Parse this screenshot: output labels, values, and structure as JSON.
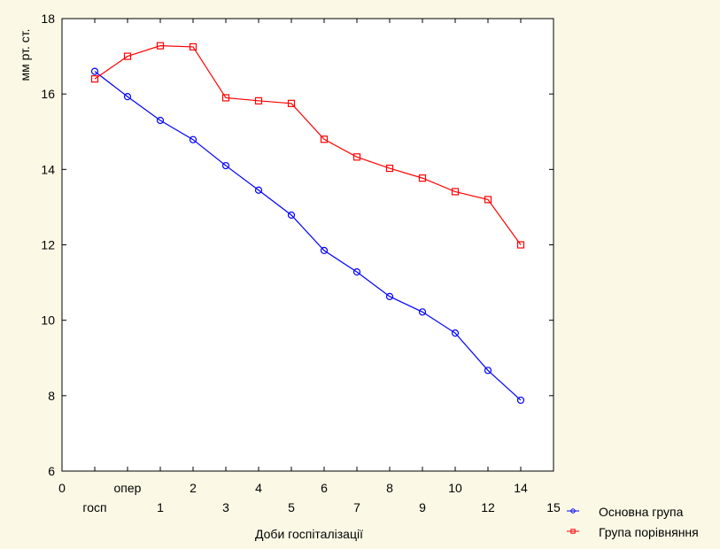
{
  "chart_data": {
    "type": "line",
    "xlabel": "Доби госпіталізації",
    "ylabel": "мм рт. ст.",
    "xlim": [
      0,
      15
    ],
    "ylim": [
      6,
      18
    ],
    "grid": false,
    "legend": "bottom-right",
    "x_ticks_top": [
      {
        "x": 0,
        "label": "0"
      },
      {
        "x": 2,
        "label": "опер"
      },
      {
        "x": 4,
        "label": "2"
      },
      {
        "x": 6,
        "label": "4"
      },
      {
        "x": 8,
        "label": "6"
      },
      {
        "x": 10,
        "label": "8"
      },
      {
        "x": 12,
        "label": "10"
      },
      {
        "x": 14,
        "label": "14"
      }
    ],
    "x_ticks_bottom": [
      {
        "x": 1,
        "label": "госп"
      },
      {
        "x": 3,
        "label": "1"
      },
      {
        "x": 5,
        "label": "3"
      },
      {
        "x": 7,
        "label": "5"
      },
      {
        "x": 9,
        "label": "7"
      },
      {
        "x": 11,
        "label": "9"
      },
      {
        "x": 13,
        "label": "12"
      },
      {
        "x": 15,
        "label": "15"
      }
    ],
    "y_ticks": [
      6,
      8,
      10,
      12,
      14,
      16,
      18
    ],
    "x": [
      1,
      2,
      3,
      4,
      5,
      6,
      7,
      8,
      9,
      10,
      11,
      12,
      13,
      14
    ],
    "series": [
      {
        "name": "Основна група",
        "color": "#0000ff",
        "marker": "circle",
        "values": [
          16.6,
          15.93,
          15.3,
          14.79,
          14.1,
          13.45,
          12.79,
          11.85,
          11.28,
          10.63,
          10.22,
          9.66,
          8.67,
          7.88
        ]
      },
      {
        "name": "Група порівняння",
        "color": "#ff0000",
        "marker": "square",
        "values": [
          16.4,
          17.0,
          17.28,
          17.25,
          15.9,
          15.82,
          15.75,
          14.8,
          14.33,
          14.03,
          13.77,
          13.41,
          13.2,
          12.0
        ]
      }
    ]
  }
}
